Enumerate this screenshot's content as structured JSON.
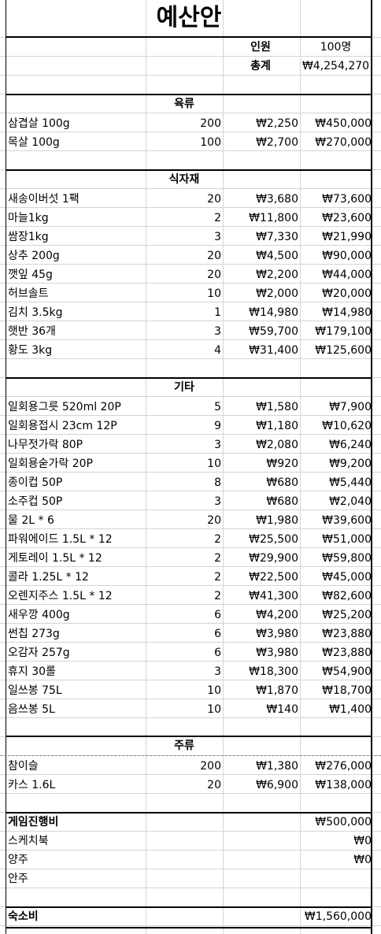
{
  "title": "예산안",
  "summary": {
    "people_label": "인원",
    "people_value": "100명",
    "total_label": "총계",
    "total_value": "₩4,254,270"
  },
  "sections": {
    "meat": {
      "header": "육류",
      "rows": [
        {
          "item": "삼겹살 100g",
          "qty": "200",
          "price": "₩2,250",
          "total": "₩450,000"
        },
        {
          "item": "목살 100g",
          "qty": "100",
          "price": "₩2,700",
          "total": "₩270,000"
        }
      ]
    },
    "ingredients": {
      "header": "식자재",
      "rows": [
        {
          "item": "새송이버섯 1팩",
          "qty": "20",
          "price": "₩3,680",
          "total": "₩73,600"
        },
        {
          "item": "마늘1kg",
          "qty": "2",
          "price": "₩11,800",
          "total": "₩23,600"
        },
        {
          "item": "쌈장1kg",
          "qty": "3",
          "price": "₩7,330",
          "total": "₩21,990"
        },
        {
          "item": "상추 200g",
          "qty": "20",
          "price": "₩4,500",
          "total": "₩90,000"
        },
        {
          "item": "깻잎 45g",
          "qty": "20",
          "price": "₩2,200",
          "total": "₩44,000"
        },
        {
          "item": "허브솔트",
          "qty": "10",
          "price": "₩2,000",
          "total": "₩20,000"
        },
        {
          "item": "김치 3.5kg",
          "qty": "1",
          "price": "₩14,980",
          "total": "₩14,980"
        },
        {
          "item": "햇반 36개",
          "qty": "3",
          "price": "₩59,700",
          "total": "₩179,100"
        },
        {
          "item": "황도 3kg",
          "qty": "4",
          "price": "₩31,400",
          "total": "₩125,600"
        }
      ]
    },
    "etc": {
      "header": "기타",
      "rows": [
        {
          "item": "일회용그릇 520ml 20P",
          "qty": "5",
          "price": "₩1,580",
          "total": "₩7,900"
        },
        {
          "item": "일회용접시 23cm 12P",
          "qty": "9",
          "price": "₩1,180",
          "total": "₩10,620"
        },
        {
          "item": "나무젓가락 80P",
          "qty": "3",
          "price": "₩2,080",
          "total": "₩6,240"
        },
        {
          "item": "일회용숟가락 20P",
          "qty": "10",
          "price": "₩920",
          "total": "₩9,200"
        },
        {
          "item": "종이컵 50P",
          "qty": "8",
          "price": "₩680",
          "total": "₩5,440"
        },
        {
          "item": "소주컵 50P",
          "qty": "3",
          "price": "₩680",
          "total": "₩2,040"
        },
        {
          "item": "물 2L * 6",
          "qty": "20",
          "price": "₩1,980",
          "total": "₩39,600"
        },
        {
          "item": "파워에이드 1.5L * 12",
          "qty": "2",
          "price": "₩25,500",
          "total": "₩51,000"
        },
        {
          "item": "게토레이 1.5L * 12",
          "qty": "2",
          "price": "₩29,900",
          "total": "₩59,800"
        },
        {
          "item": "콜라 1.25L * 12",
          "qty": "2",
          "price": "₩22,500",
          "total": "₩45,000"
        },
        {
          "item": "오렌지주스 1.5L * 12",
          "qty": "2",
          "price": "₩41,300",
          "total": "₩82,600"
        },
        {
          "item": "새우깡 400g",
          "qty": "6",
          "price": "₩4,200",
          "total": "₩25,200"
        },
        {
          "item": "썬칩 273g",
          "qty": "6",
          "price": "₩3,980",
          "total": "₩23,880"
        },
        {
          "item": "오감자 257g",
          "qty": "6",
          "price": "₩3,980",
          "total": "₩23,880"
        },
        {
          "item": "휴지 30롤",
          "qty": "3",
          "price": "₩18,300",
          "total": "₩54,900"
        },
        {
          "item": "일쓰봉 75L",
          "qty": "10",
          "price": "₩1,870",
          "total": "₩18,700"
        },
        {
          "item": "음쓰봉 5L",
          "qty": "10",
          "price": "₩140",
          "total": "₩1,400"
        }
      ]
    },
    "alcohol": {
      "header": "주류",
      "rows": [
        {
          "item": "참이슬",
          "qty": "200",
          "price": "₩1,380",
          "total": "₩276,000"
        },
        {
          "item": "카스 1.6L",
          "qty": "20",
          "price": "₩6,900",
          "total": "₩138,000"
        }
      ]
    },
    "game": {
      "header_label": "게임진행비",
      "header_total": "₩500,000",
      "rows": [
        {
          "item": "스케치북",
          "total": "₩0"
        },
        {
          "item": "양주",
          "total": "₩0"
        },
        {
          "item": "안주",
          "total": ""
        }
      ]
    },
    "lodging": {
      "label": "숙소비",
      "total": "₩1,560,000"
    }
  }
}
